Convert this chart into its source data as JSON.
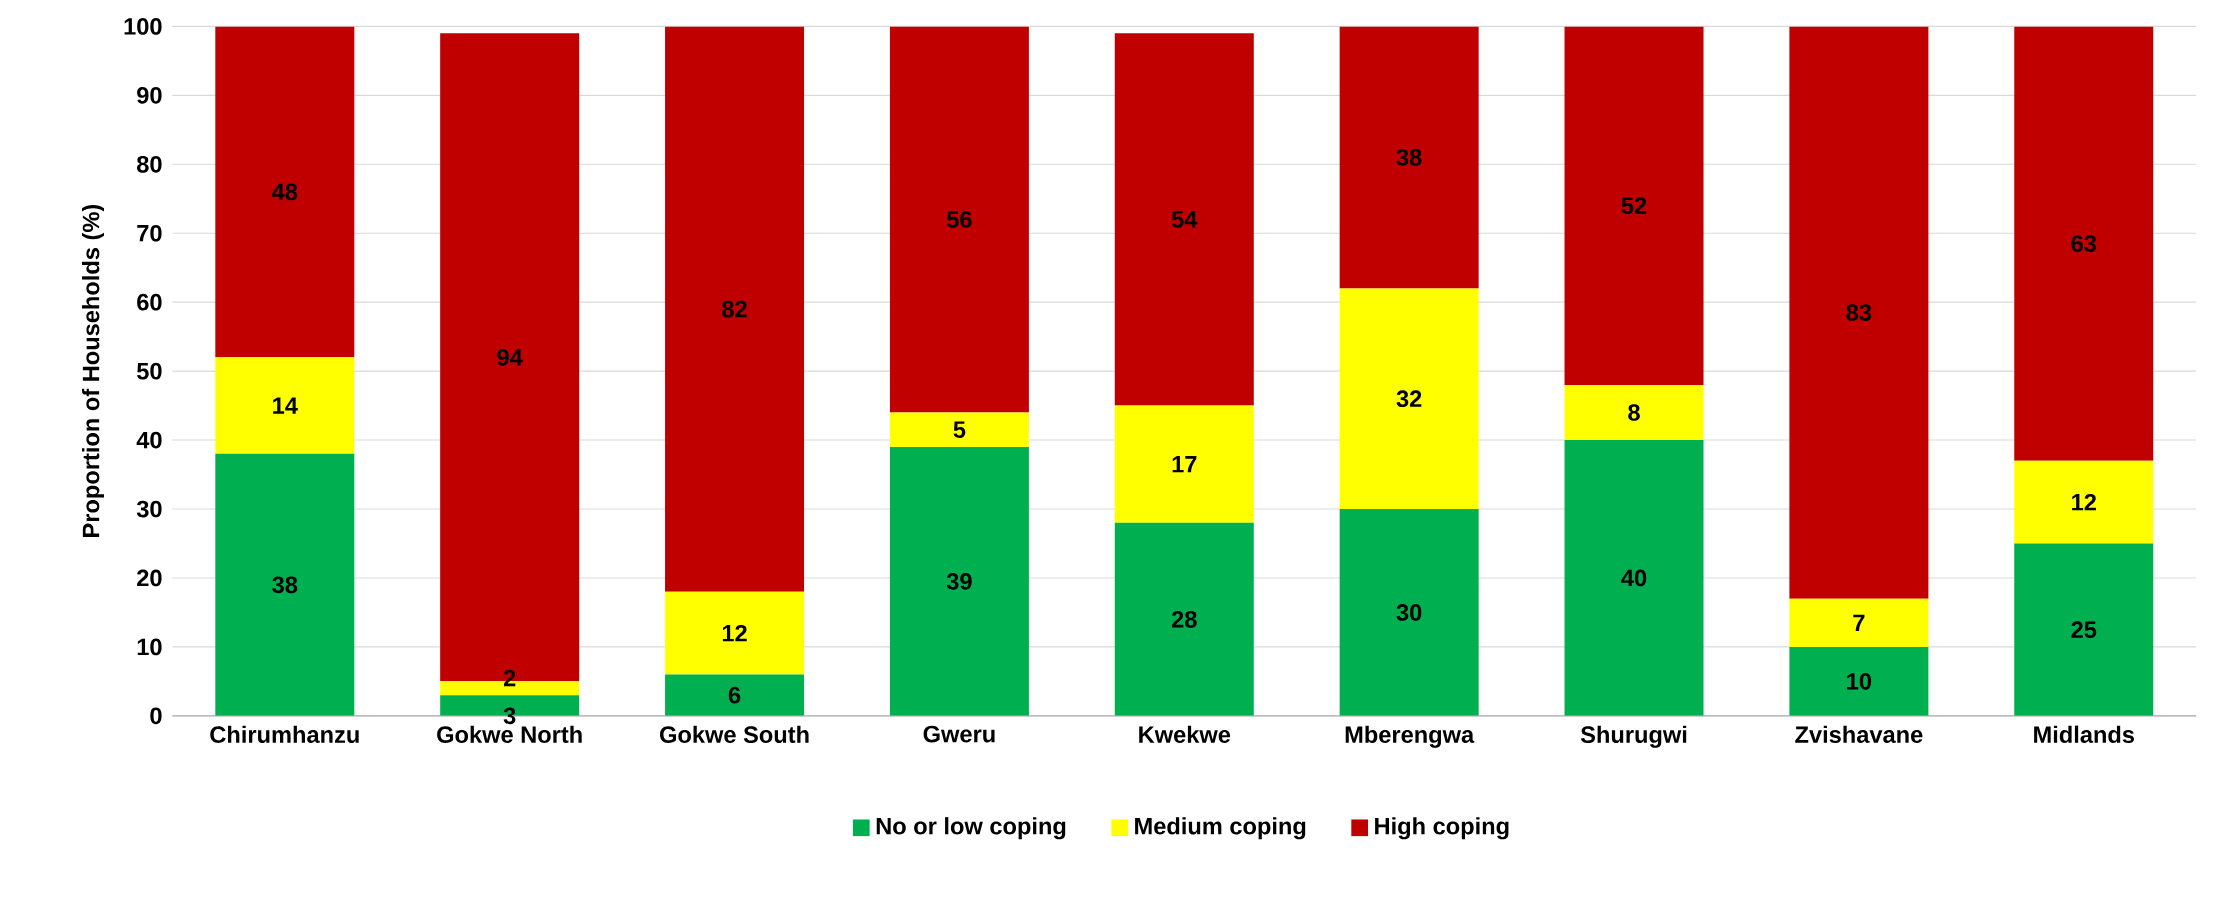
{
  "chart_data": {
    "type": "bar",
    "stacked": true,
    "ylabel": "Proportion of Households (%)",
    "categories": [
      "Chirumhanzu",
      "Gokwe North",
      "Gokwe South",
      "Gweru",
      "Kwekwe",
      "Mberengwa",
      "Shurugwi",
      "Zvishavane",
      "Midlands"
    ],
    "series": [
      {
        "name": "No or low coping",
        "color": "#00b050",
        "values": [
          38,
          3,
          6,
          39,
          28,
          30,
          40,
          10,
          25
        ]
      },
      {
        "name": "Medium coping",
        "color": "#ffff00",
        "values": [
          14,
          2,
          12,
          5,
          17,
          32,
          8,
          7,
          12
        ]
      },
      {
        "name": "High coping",
        "color": "#c00000",
        "values": [
          48,
          94,
          82,
          56,
          54,
          38,
          52,
          83,
          63
        ]
      }
    ],
    "ylim": [
      0,
      100
    ],
    "yticks": [
      0,
      10,
      20,
      30,
      40,
      50,
      60,
      70,
      80,
      90,
      100
    ],
    "grid": "y",
    "legend": "bottom",
    "data_labels": true
  }
}
